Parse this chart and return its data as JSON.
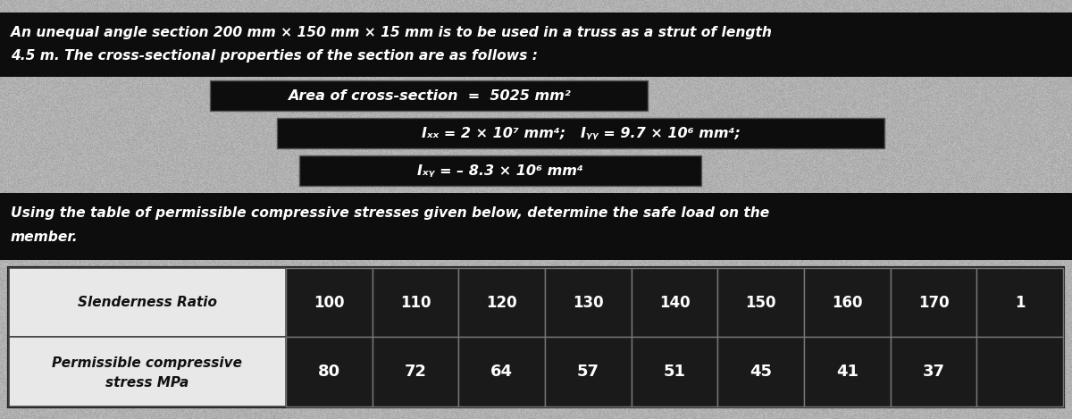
{
  "bg_color": "#c8c8c8",
  "text_color": "#ffffff",
  "dark_band_color": "#0d0d0d",
  "mid_dark_color": "#1a1a1a",
  "box_dark_color": "#111111",
  "title_line1": "An unequal angle section 200 mm × 150 mm × 15 mm is to be used in a truss as a strut of length",
  "title_line2": "4.5 m. The cross-sectional properties of the section are as follows :",
  "area_text": "Area of cross-section  =  5025 mm²",
  "ixx_text": "Iₓₓ = 2 × 10⁷ mm⁴;   Iᵧᵧ = 9.7 × 10⁶ mm⁴;",
  "ixy_text": "Iₓᵧ = – 8.3 × 10⁶ mm⁴",
  "using_line1": "Using the table of permissible compressive stresses given below, determine the safe load on the",
  "using_line2": "member.",
  "slenderness_label": "Slenderness Ratio",
  "stress_label_line1": "Permissible compressive",
  "stress_label_line2": "stress MPa",
  "header_vals": [
    "100",
    "110",
    "120",
    "130",
    "140",
    "150",
    "160",
    "170",
    "1"
  ],
  "data_vals": [
    "80",
    "72",
    "64",
    "57",
    "51",
    "45",
    "41",
    "37",
    ""
  ],
  "table_bg": "#f0f0f0",
  "table_label_bg": "#f0f0f0",
  "table_cell_bg": "#1a1a1a",
  "table_border": "#333333"
}
